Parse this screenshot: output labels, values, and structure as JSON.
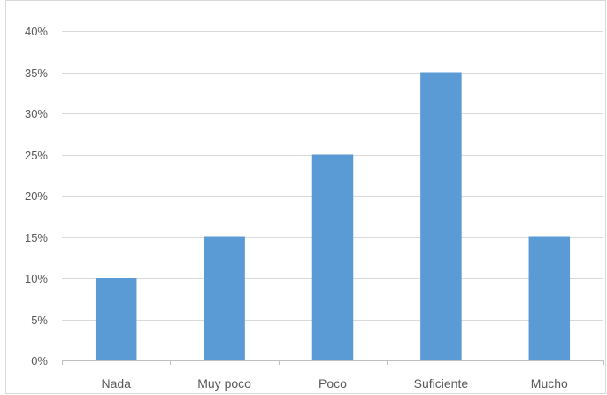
{
  "chart_data": {
    "type": "bar",
    "categories": [
      "Nada",
      "Muy poco",
      "Poco",
      "Suficiente",
      "Mucho"
    ],
    "values": [
      10,
      15,
      25,
      35,
      15
    ],
    "title": "",
    "xlabel": "",
    "ylabel": "",
    "ylim": [
      0,
      40
    ],
    "y_ticks": [
      0,
      5,
      10,
      15,
      20,
      25,
      30,
      35,
      40
    ],
    "y_tick_labels": [
      "0%",
      "5%",
      "10%",
      "15%",
      "20%",
      "25%",
      "30%",
      "35%",
      "40%"
    ],
    "grid": true,
    "legend": "none",
    "colors": {
      "bar": "#5b9bd5",
      "grid": "#d9d9d9",
      "axis": "#bfbfbf",
      "text": "#595959"
    }
  }
}
